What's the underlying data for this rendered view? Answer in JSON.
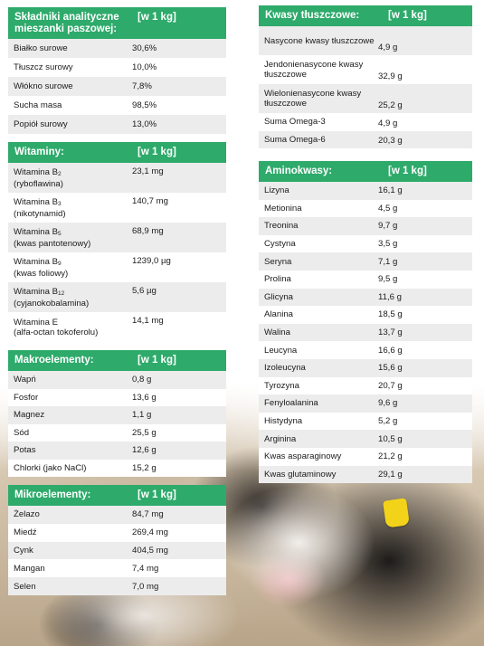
{
  "left_column": {
    "analytical": {
      "header_label": "Składniki analityczne mieszanki paszowej:",
      "header_unit": "[w 1 kg]",
      "rows": [
        {
          "name": "Białko surowe",
          "value": "30,6%"
        },
        {
          "name": "Tłuszcz surowy",
          "value": "10,0%"
        },
        {
          "name": "Włókno surowe",
          "value": "7,8%"
        },
        {
          "name": "Sucha masa",
          "value": "98,5%"
        },
        {
          "name": "Popiół surowy",
          "value": "13,0%"
        }
      ]
    },
    "vitamins": {
      "header_label": "Witaminy:",
      "header_unit": "[w 1 kg]",
      "rows": [
        {
          "name": "Witamina B",
          "sub": "2",
          "note": "(ryboflawina)",
          "value": "23,1 mg"
        },
        {
          "name": "Witamina B",
          "sub": "3",
          "note": "(nikotynamid)",
          "value": "140,7 mg"
        },
        {
          "name": "Witamina B",
          "sub": "5",
          "note": "(kwas pantotenowy)",
          "value": "68,9 mg"
        },
        {
          "name": "Witamina B",
          "sub": "9",
          "note": "(kwas foliowy)",
          "value": "1239,0 µg"
        },
        {
          "name": "Witamina B",
          "sub": "12",
          "note": "(cyjanokobalamina)",
          "value": "5,6 µg"
        },
        {
          "name": "Witamina E",
          "sub": "",
          "note": "(alfa-octan tokoferolu)",
          "value": "14,1 mg"
        }
      ]
    },
    "macro": {
      "header_label": "Makroelementy:",
      "header_unit": "[w 1 kg]",
      "rows": [
        {
          "name": "Wapń",
          "value": "0,8 g"
        },
        {
          "name": "Fosfor",
          "value": "13,6 g"
        },
        {
          "name": "Magnez",
          "value": "1,1 g"
        },
        {
          "name": "Sód",
          "value": "25,5 g"
        },
        {
          "name": "Potas",
          "value": "12,6 g"
        },
        {
          "name": "Chlorki (jako NaCl)",
          "value": "15,2 g"
        }
      ]
    },
    "micro": {
      "header_label": "Mikroelementy:",
      "header_unit": "[w 1 kg]",
      "rows": [
        {
          "name": "Żelazo",
          "value": "84,7 mg"
        },
        {
          "name": "Miedź",
          "value": "269,4 mg"
        },
        {
          "name": "Cynk",
          "value": "404,5 mg"
        },
        {
          "name": "Mangan",
          "value": "7,4 mg"
        },
        {
          "name": "Selen",
          "value": "7,0 mg"
        }
      ]
    }
  },
  "right_column": {
    "fatty_acids": {
      "header_label": "Kwasy tłuszczowe:",
      "header_unit": "[w 1 kg]",
      "rows": [
        {
          "name": "Nasycone kwasy tłuszczowe",
          "value": "4,9 g"
        },
        {
          "name": "Jendonienasycone kwasy tłuszczowe",
          "value": "32,9 g"
        },
        {
          "name": "Wielonienasycone kwasy tłuszczowe",
          "value": "25,2 g"
        },
        {
          "name": "Suma Omega-3",
          "value": "4,9 g"
        },
        {
          "name": "Suma Omega-6",
          "value": "20,3 g"
        }
      ]
    },
    "amino": {
      "header_label": "Aminokwasy:",
      "header_unit": "[w 1 kg]",
      "rows": [
        {
          "name": "Lizyna",
          "value": "16,1 g"
        },
        {
          "name": "Metionina",
          "value": "4,5 g"
        },
        {
          "name": "Treonina",
          "value": "9,7 g"
        },
        {
          "name": "Cystyna",
          "value": "3,5 g"
        },
        {
          "name": "Seryna",
          "value": "7,1 g"
        },
        {
          "name": "Prolina",
          "value": "9,5 g"
        },
        {
          "name": "Glicyna",
          "value": "11,6 g"
        },
        {
          "name": "Alanina",
          "value": "18,5 g"
        },
        {
          "name": "Walina",
          "value": "13,7 g"
        },
        {
          "name": "Leucyna",
          "value": "16,6 g"
        },
        {
          "name": "Izoleucyna",
          "value": "15,6 g"
        },
        {
          "name": "Tyrozyna",
          "value": "20,7 g"
        },
        {
          "name": "Fenyloalanina",
          "value": "9,6 g"
        },
        {
          "name": "Histydyna",
          "value": "5,2 g"
        },
        {
          "name": "Arginina",
          "value": "10,5 g"
        },
        {
          "name": "Kwas asparaginowy",
          "value": "21,2 g"
        },
        {
          "name": "Kwas glutaminowy",
          "value": "29,1 g"
        }
      ]
    }
  }
}
